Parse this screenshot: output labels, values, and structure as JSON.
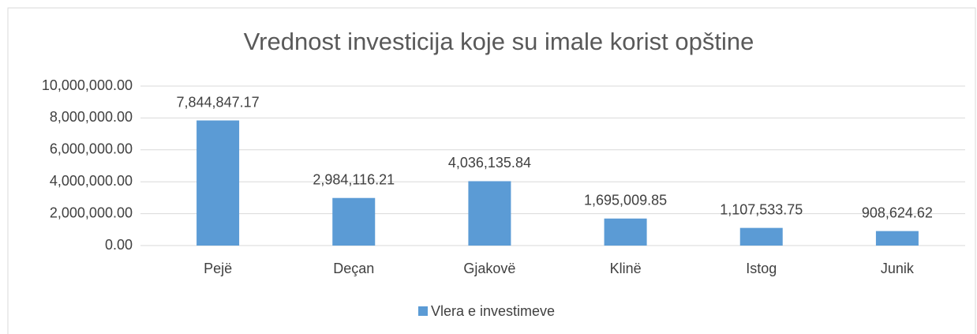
{
  "chart_data": {
    "type": "bar",
    "title": "Vrednost investicija koje su imale korist opštine",
    "categories": [
      "Pejë",
      "Deçan",
      "Gjakovë",
      "Klinë",
      "Istog",
      "Junik"
    ],
    "series": [
      {
        "name": "Vlera e investimeve",
        "color": "#5b9bd5",
        "values": [
          7844847.17,
          2984116.21,
          4036135.84,
          1695009.85,
          1107533.75,
          908624.62
        ],
        "value_labels": [
          "7,844,847.17",
          "2,984,116.21",
          "4,036,135.84",
          "1,695,009.85",
          "1,107,533.75",
          "908,624.62"
        ]
      }
    ],
    "ylim": [
      0,
      10000000
    ],
    "yticks": [
      {
        "value": 0,
        "label": "0.00"
      },
      {
        "value": 2000000,
        "label": "2,000,000.00"
      },
      {
        "value": 4000000,
        "label": "4,000,000.00"
      },
      {
        "value": 6000000,
        "label": "6,000,000.00"
      },
      {
        "value": 8000000,
        "label": "8,000,000.00"
      },
      {
        "value": 10000000,
        "label": "10,000,000.00"
      }
    ],
    "grid": true,
    "legend": "bottom"
  }
}
